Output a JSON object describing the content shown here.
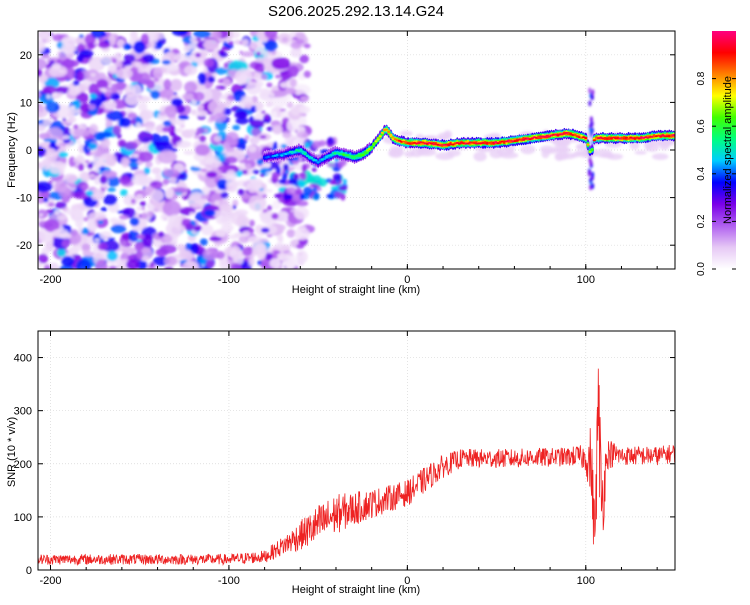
{
  "title": "S206.2025.292.13.14.G24",
  "chart_data": [
    {
      "type": "heatmap",
      "xlabel": "Height of straight line (km)",
      "ylabel": "Frequency (Hz)",
      "xlim": [
        -207,
        150
      ],
      "ylim": [
        -25,
        25
      ],
      "xticks": [
        -200,
        -100,
        0,
        100
      ],
      "yticks": [
        -20,
        -10,
        0,
        10,
        20
      ],
      "colorbar": {
        "label": "Normalized spectral amplitude",
        "range": [
          0,
          1
        ],
        "ticks": [
          "0.0",
          "0.2",
          "0.4",
          "0.6",
          "0.8"
        ],
        "tick_values": [
          0.0,
          0.2,
          0.4,
          0.6,
          0.8
        ],
        "colors": [
          "#ffffff",
          "#e6c8f5",
          "#b060f0",
          "#7a00e8",
          "#0000ff",
          "#00ccff",
          "#00ff80",
          "#40ff00",
          "#ffff00",
          "#ff8000",
          "#ff0000",
          "#ff0080"
        ]
      },
      "noise_region_x": [
        -207,
        -60
      ],
      "ridge": {
        "x": [
          -80,
          -70,
          -60,
          -55,
          -50,
          -45,
          -40,
          -35,
          -30,
          -25,
          -20,
          -15,
          -12,
          -8,
          -5,
          0,
          10,
          20,
          30,
          40,
          50,
          60,
          70,
          80,
          90,
          95,
          100,
          103,
          105,
          110,
          120,
          130,
          140,
          150
        ],
        "freq": [
          -1.5,
          -1.0,
          0.0,
          -1.5,
          -2.5,
          -1.5,
          -0.5,
          -1.0,
          -1.5,
          -1.0,
          0.5,
          3.0,
          4.5,
          2.5,
          2.0,
          1.5,
          1.5,
          1.0,
          1.5,
          1.5,
          1.5,
          2.0,
          2.5,
          3.0,
          3.5,
          3.0,
          2.5,
          -1.0,
          2.5,
          2.5,
          2.5,
          2.5,
          3.0,
          3.0
        ],
        "amplitude": [
          0.4,
          0.45,
          0.55,
          0.5,
          0.45,
          0.5,
          0.55,
          0.6,
          0.6,
          0.65,
          0.7,
          0.75,
          0.8,
          0.85,
          0.9,
          0.92,
          0.95,
          0.95,
          0.95,
          0.95,
          0.95,
          0.95,
          0.95,
          0.95,
          0.95,
          0.95,
          0.9,
          0.6,
          0.9,
          0.95,
          0.95,
          0.95,
          0.95,
          0.95
        ]
      }
    },
    {
      "type": "line",
      "xlabel": "Height of straight line (km)",
      "ylabel": "SNR (10 * v/v)",
      "xlim": [
        -207,
        150
      ],
      "ylim": [
        0,
        450
      ],
      "xticks": [
        -200,
        -100,
        0,
        100
      ],
      "yticks": [
        0,
        100,
        200,
        300,
        400
      ],
      "color": "#ee2222",
      "series": [
        {
          "name": "SNR",
          "x": [
            -207,
            -150,
            -100,
            -80,
            -70,
            -60,
            -50,
            -40,
            -30,
            -20,
            -10,
            0,
            10,
            20,
            30,
            40,
            50,
            60,
            70,
            80,
            90,
            95,
            100,
            103,
            105,
            107,
            109,
            112,
            120,
            130,
            140,
            150
          ],
          "trend": [
            20,
            20,
            20,
            25,
            45,
            65,
            85,
            105,
            115,
            125,
            135,
            145,
            170,
            195,
            210,
            210,
            210,
            210,
            212,
            212,
            213,
            215,
            210,
            200,
            60,
            300,
            120,
            220,
            215,
            215,
            215,
            220
          ],
          "noise": [
            10,
            10,
            10,
            12,
            18,
            28,
            38,
            38,
            32,
            28,
            25,
            25,
            25,
            22,
            18,
            18,
            18,
            18,
            18,
            18,
            18,
            20,
            25,
            80,
            60,
            120,
            90,
            30,
            18,
            18,
            18,
            18
          ]
        }
      ]
    }
  ]
}
